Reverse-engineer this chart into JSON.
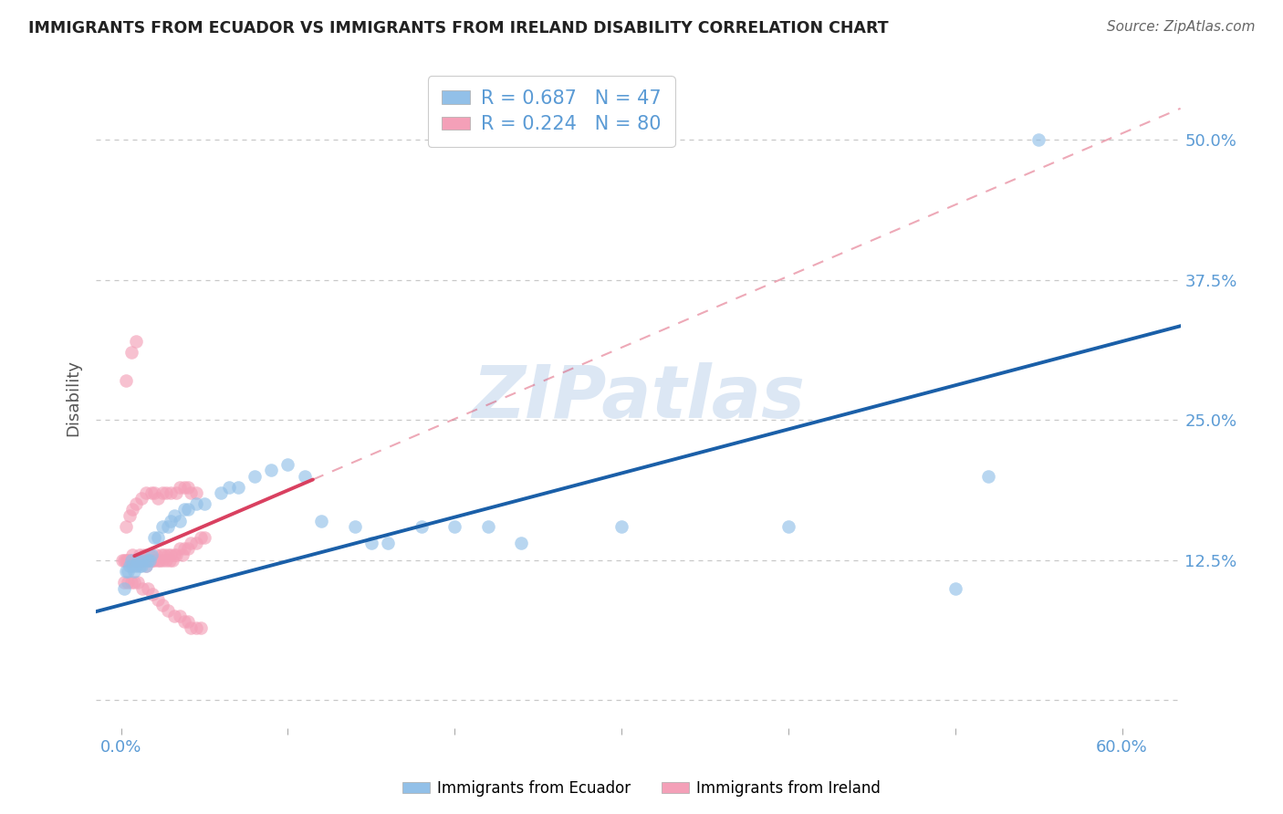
{
  "title": "IMMIGRANTS FROM ECUADOR VS IMMIGRANTS FROM IRELAND DISABILITY CORRELATION CHART",
  "source": "Source: ZipAtlas.com",
  "tick_color": "#5b9bd5",
  "ylabel": "Disability",
  "x_ticks": [
    0.0,
    0.1,
    0.2,
    0.3,
    0.4,
    0.5,
    0.6
  ],
  "y_ticks": [
    0.0,
    0.125,
    0.25,
    0.375,
    0.5
  ],
  "xlim": [
    -0.015,
    0.635
  ],
  "ylim": [
    -0.025,
    0.565
  ],
  "ecuador_R": 0.687,
  "ecuador_N": 47,
  "ireland_R": 0.224,
  "ireland_N": 80,
  "ecuador_color": "#92c0e8",
  "ireland_color": "#f4a0b8",
  "ecuador_line_color": "#1a5fa8",
  "ireland_line_color": "#d94060",
  "watermark": "ZIPatlas",
  "ecuador_x": [
    0.002,
    0.003,
    0.004,
    0.005,
    0.006,
    0.007,
    0.008,
    0.009,
    0.01,
    0.011,
    0.012,
    0.013,
    0.015,
    0.016,
    0.017,
    0.018,
    0.02,
    0.022,
    0.025,
    0.028,
    0.03,
    0.032,
    0.035,
    0.038,
    0.04,
    0.045,
    0.05,
    0.06,
    0.065,
    0.07,
    0.08,
    0.09,
    0.1,
    0.11,
    0.12,
    0.14,
    0.15,
    0.16,
    0.18,
    0.2,
    0.22,
    0.24,
    0.3,
    0.4,
    0.5,
    0.52,
    0.55
  ],
  "ecuador_y": [
    0.1,
    0.115,
    0.115,
    0.12,
    0.125,
    0.12,
    0.115,
    0.12,
    0.125,
    0.12,
    0.12,
    0.125,
    0.12,
    0.125,
    0.125,
    0.13,
    0.145,
    0.145,
    0.155,
    0.155,
    0.16,
    0.165,
    0.16,
    0.17,
    0.17,
    0.175,
    0.175,
    0.185,
    0.19,
    0.19,
    0.2,
    0.205,
    0.21,
    0.2,
    0.16,
    0.155,
    0.14,
    0.14,
    0.155,
    0.155,
    0.155,
    0.14,
    0.155,
    0.155,
    0.1,
    0.2,
    0.5
  ],
  "ireland_x": [
    0.001,
    0.002,
    0.003,
    0.004,
    0.005,
    0.006,
    0.007,
    0.008,
    0.009,
    0.01,
    0.011,
    0.012,
    0.013,
    0.014,
    0.015,
    0.016,
    0.017,
    0.018,
    0.019,
    0.02,
    0.021,
    0.022,
    0.023,
    0.024,
    0.025,
    0.026,
    0.027,
    0.028,
    0.029,
    0.03,
    0.031,
    0.032,
    0.033,
    0.035,
    0.037,
    0.038,
    0.04,
    0.042,
    0.045,
    0.048,
    0.05,
    0.003,
    0.005,
    0.007,
    0.009,
    0.012,
    0.015,
    0.018,
    0.02,
    0.022,
    0.025,
    0.027,
    0.03,
    0.033,
    0.035,
    0.038,
    0.04,
    0.042,
    0.045,
    0.002,
    0.004,
    0.006,
    0.008,
    0.01,
    0.013,
    0.016,
    0.019,
    0.022,
    0.025,
    0.028,
    0.032,
    0.035,
    0.038,
    0.04,
    0.042,
    0.045,
    0.048,
    0.003,
    0.006,
    0.009
  ],
  "ireland_y": [
    0.125,
    0.125,
    0.125,
    0.125,
    0.125,
    0.125,
    0.13,
    0.125,
    0.125,
    0.125,
    0.13,
    0.125,
    0.125,
    0.13,
    0.12,
    0.125,
    0.13,
    0.125,
    0.125,
    0.125,
    0.13,
    0.125,
    0.125,
    0.13,
    0.125,
    0.13,
    0.125,
    0.13,
    0.125,
    0.13,
    0.125,
    0.13,
    0.13,
    0.135,
    0.13,
    0.135,
    0.135,
    0.14,
    0.14,
    0.145,
    0.145,
    0.155,
    0.165,
    0.17,
    0.175,
    0.18,
    0.185,
    0.185,
    0.185,
    0.18,
    0.185,
    0.185,
    0.185,
    0.185,
    0.19,
    0.19,
    0.19,
    0.185,
    0.185,
    0.105,
    0.105,
    0.105,
    0.105,
    0.105,
    0.1,
    0.1,
    0.095,
    0.09,
    0.085,
    0.08,
    0.075,
    0.075,
    0.07,
    0.07,
    0.065,
    0.065,
    0.065,
    0.285,
    0.31,
    0.32
  ]
}
